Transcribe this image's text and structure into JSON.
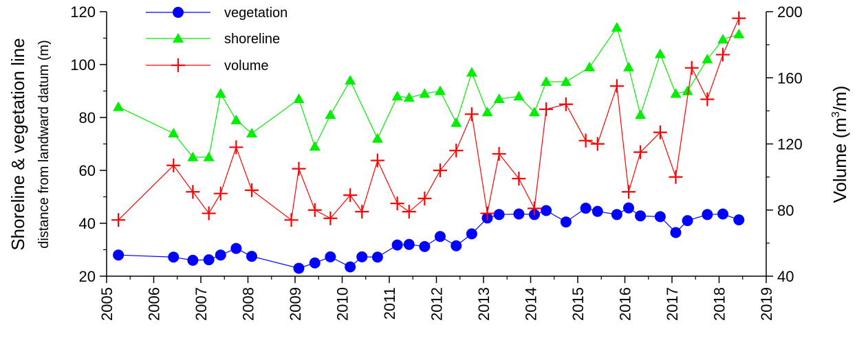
{
  "chart_data": {
    "type": "line",
    "xlabel": "",
    "ylabel_left": "Shoreline & vegetation line",
    "ylabel_left_sub": "distance from landward datum (m)",
    "ylabel_right": "Volume (m³/m)",
    "ylabel_right_base": "Volume (m",
    "ylabel_right_sup": "3",
    "ylabel_right_tail": "/m)",
    "xlim": [
      2005,
      2019
    ],
    "ylim_left": [
      20,
      120
    ],
    "ylim_right": [
      40,
      200
    ],
    "x_ticks": [
      "2005",
      "2006",
      "2007",
      "2008",
      "2009",
      "2010",
      "2011",
      "2012",
      "2013",
      "2014",
      "2015",
      "2016",
      "2017",
      "2018",
      "2019"
    ],
    "y_left_ticks": [
      "20",
      "40",
      "60",
      "80",
      "100",
      "120"
    ],
    "y_right_ticks": [
      "40",
      "80",
      "120",
      "160",
      "200"
    ],
    "grid": false,
    "legend_position": "top-left",
    "series": [
      {
        "name": "vegetation",
        "axis": "left",
        "color": "#0000ff",
        "marker": "circle",
        "x": [
          2005.25,
          2006.42,
          2006.83,
          2007.17,
          2007.42,
          2007.75,
          2008.08,
          2009.08,
          2009.42,
          2009.75,
          2010.17,
          2010.42,
          2010.75,
          2011.17,
          2011.42,
          2011.75,
          2012.08,
          2012.42,
          2012.75,
          2013.08,
          2013.33,
          2013.75,
          2014.08,
          2014.33,
          2014.75,
          2015.17,
          2015.42,
          2015.83,
          2016.08,
          2016.33,
          2016.75,
          2017.08,
          2017.33,
          2017.75,
          2018.08,
          2018.42
        ],
        "y": [
          28,
          27.2,
          26,
          26.2,
          28,
          30.5,
          27.5,
          23,
          25,
          27.3,
          23.5,
          27.3,
          27.2,
          31.8,
          32,
          31.2,
          35,
          31.5,
          36,
          42,
          43.3,
          43.5,
          43.3,
          44.8,
          40.5,
          45.7,
          44.5,
          43.3,
          45.8,
          42.8,
          42.5,
          36.5,
          41,
          43.3,
          43.5,
          41.3
        ]
      },
      {
        "name": "shoreline",
        "axis": "left",
        "color": "#00ee00",
        "marker": "triangle",
        "x": [
          2005.25,
          2006.42,
          2006.83,
          2007.17,
          2007.42,
          2007.75,
          2008.08,
          2009.08,
          2009.42,
          2009.75,
          2010.17,
          2010.75,
          2011.17,
          2011.42,
          2011.75,
          2012.08,
          2012.42,
          2012.75,
          2013.08,
          2013.33,
          2013.75,
          2014.08,
          2014.33,
          2014.75,
          2015.25,
          2015.83,
          2016.08,
          2016.33,
          2016.75,
          2017.08,
          2017.33,
          2017.75,
          2018.08,
          2018.42
        ],
        "y": [
          84,
          74,
          65,
          65,
          89,
          79,
          74,
          87,
          69,
          81,
          94,
          72,
          88,
          87.5,
          89,
          90,
          78,
          97,
          82,
          87,
          88,
          82,
          93.5,
          93.5,
          99,
          114,
          99,
          81,
          104,
          89,
          90,
          102,
          109.5,
          111.5
        ]
      },
      {
        "name": "volume",
        "axis": "right",
        "color": "#ff0000",
        "marker": "plus",
        "x": [
          2005.25,
          2006.42,
          2006.83,
          2007.17,
          2007.42,
          2007.75,
          2008.08,
          2008.92,
          2009.08,
          2009.42,
          2009.75,
          2010.17,
          2010.42,
          2010.75,
          2011.17,
          2011.42,
          2011.75,
          2012.08,
          2012.42,
          2012.75,
          2013.08,
          2013.33,
          2013.75,
          2014.08,
          2014.33,
          2014.75,
          2015.17,
          2015.42,
          2015.83,
          2016.08,
          2016.33,
          2016.75,
          2017.08,
          2017.42,
          2017.75,
          2018.08,
          2018.42
        ],
        "y": [
          74,
          107,
          91,
          78,
          90,
          118,
          92,
          74,
          105,
          80,
          75,
          89,
          79,
          110,
          84,
          79,
          87,
          104,
          116,
          138,
          78,
          114,
          99,
          81,
          141,
          144,
          122,
          120,
          155,
          91,
          115,
          127,
          100,
          166,
          147,
          174,
          196
        ]
      }
    ]
  }
}
